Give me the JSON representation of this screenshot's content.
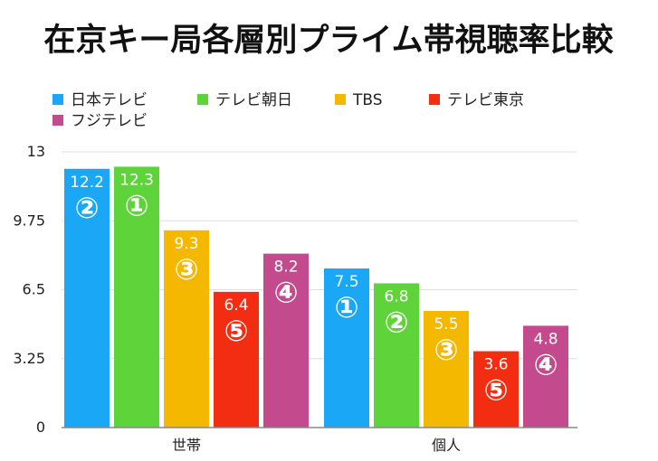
{
  "chart_data": {
    "type": "bar",
    "title": "在京キー局各層別プライム帯視聴率比較",
    "categories": [
      "世帯",
      "個人"
    ],
    "series": [
      {
        "name": "日本テレビ",
        "color": "#1aa7f5",
        "values": [
          12.2,
          7.5
        ],
        "ranks": [
          "②",
          "①"
        ]
      },
      {
        "name": "テレビ朝日",
        "color": "#5fd33a",
        "values": [
          12.3,
          6.8
        ],
        "ranks": [
          "①",
          "②"
        ]
      },
      {
        "name": "TBS",
        "color": "#f5b800",
        "values": [
          9.3,
          5.5
        ],
        "ranks": [
          "③",
          "③"
        ]
      },
      {
        "name": "テレビ東京",
        "color": "#f32d12",
        "values": [
          6.4,
          3.6
        ],
        "ranks": [
          "⑤",
          "⑤"
        ]
      },
      {
        "name": "フジテレビ",
        "color": "#c34a8d",
        "values": [
          8.2,
          4.8
        ],
        "ranks": [
          "④",
          "④"
        ]
      }
    ],
    "y_ticks": [
      "0",
      "3.25",
      "6.5",
      "9.75",
      "13"
    ],
    "ylim": [
      0,
      13
    ],
    "grid": true,
    "legend": "top-left"
  }
}
